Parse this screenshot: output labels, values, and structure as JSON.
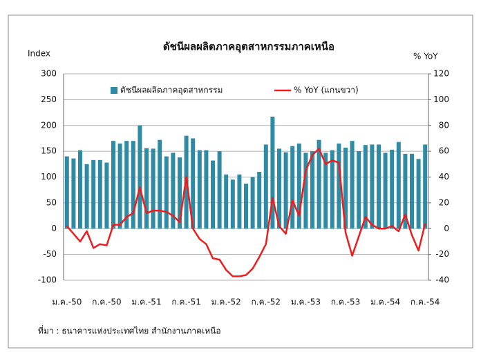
{
  "chart_data": {
    "type": "bar-line",
    "title": "ดัชนีผลผลิตภาคอุตสาหกรรมภาคเหนือ",
    "y_label": "Index",
    "y2_label": "% YoY",
    "source": "ที่มา : ธนาคารแห่งประเทศไทย สำนักงานภาคเหนือ",
    "categories": [
      "ม.ค.-50",
      null,
      null,
      null,
      null,
      null,
      "ก.ค.-50",
      null,
      null,
      null,
      null,
      null,
      "ม.ค.-51",
      null,
      null,
      null,
      null,
      null,
      "ก.ค.-51",
      null,
      null,
      null,
      null,
      null,
      "ม.ค.-52",
      null,
      null,
      null,
      null,
      null,
      "ก.ค.-52",
      null,
      null,
      null,
      null,
      null,
      "ม.ค.-53",
      null,
      null,
      null,
      null,
      null,
      "ก.ค.-53",
      null,
      null,
      null,
      null,
      null,
      "ม.ค.-54",
      null,
      null,
      null,
      null,
      null,
      "ก.ค.-54"
    ],
    "series": [
      {
        "name": "ดัชนีผลผลิตภาคอุตสาหกรรม",
        "kind": "bar",
        "color": "#2e8ba3",
        "values": [
          140,
          136,
          152,
          125,
          133,
          133,
          128,
          170,
          165,
          170,
          170,
          200,
          156,
          155,
          172,
          140,
          147,
          138,
          180,
          175,
          152,
          152,
          132,
          150,
          105,
          95,
          105,
          87,
          100,
          110,
          163,
          217,
          155,
          148,
          160,
          165,
          147,
          150,
          172,
          147,
          152,
          165,
          157,
          170,
          150,
          162,
          163,
          163,
          147,
          153,
          168,
          145,
          145,
          135,
          163
        ]
      },
      {
        "name": "% YoY (แกนขวา)",
        "kind": "line",
        "axis": "y2",
        "color": "#ee1c1c",
        "values": [
          2,
          -4,
          -10,
          -2,
          -15,
          -12,
          -13,
          3,
          3,
          9,
          12,
          32,
          12,
          14,
          14,
          13,
          10,
          5,
          40,
          0,
          -8,
          -12,
          -23,
          -24,
          -32,
          -37,
          -37,
          -36,
          -31,
          -22,
          -12,
          24,
          2,
          -4,
          22,
          10,
          45,
          57,
          62,
          50,
          53,
          51,
          -3,
          -21,
          -6,
          9,
          3,
          0,
          0,
          2,
          -2,
          11,
          -5,
          -17,
          4
        ]
      }
    ],
    "ylim": [
      -100,
      300
    ],
    "yticks": [
      -100,
      -50,
      0,
      50,
      100,
      150,
      200,
      250,
      300
    ],
    "y2lim": [
      -40,
      120
    ],
    "y2ticks": [
      -40,
      -20,
      0,
      20,
      40,
      60,
      80,
      100,
      120
    ],
    "grid": true,
    "legend": "top"
  }
}
